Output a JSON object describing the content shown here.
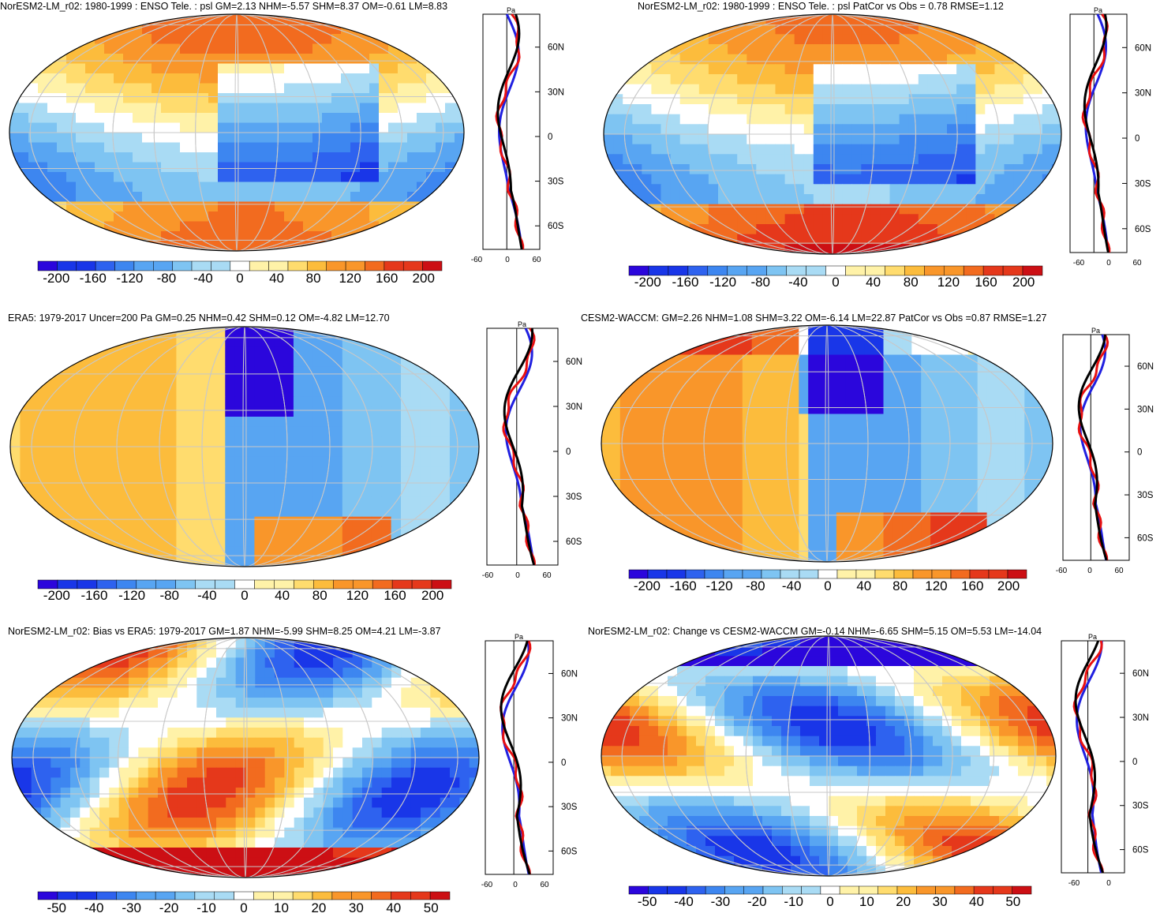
{
  "chart_data": [
    {
      "type": "heatmap",
      "title": "NorESM2-LM_r02: 1980-1999 : ENSO Tele. : psl GM=2.13 NHM=-5.57 SHM=8.37 OM=-0.61 LM=8.83",
      "field": "sea level pressure (psl) ENSO teleconnection regression",
      "colorbar": {
        "ticks": [
          "-200",
          "-160",
          "-120",
          "-80",
          "-40",
          "0",
          "40",
          "80",
          "120",
          "160",
          "200"
        ],
        "range": [
          -200,
          200
        ]
      },
      "profile": {
        "unit": "Pa",
        "x_ticks": [
          "-60",
          "0",
          "60"
        ],
        "y_ticks": [
          "60N",
          "30N",
          "0",
          "30S",
          "60S"
        ],
        "series": [
          "blue",
          "red",
          "black"
        ]
      }
    },
    {
      "type": "heatmap",
      "title": "NorESM2-LM_r02: 1980-1999 : ENSO Tele. : psl PatCor vs Obs = 0.78 RMSE=1.12",
      "field": "sea level pressure (psl) ENSO teleconnection regression",
      "colorbar": {
        "ticks": [
          "-200",
          "-160",
          "-120",
          "-80",
          "-40",
          "0",
          "40",
          "80",
          "120",
          "160",
          "200"
        ],
        "range": [
          -200,
          200
        ]
      },
      "profile": {
        "unit": "Pa",
        "x_ticks": [
          "-60",
          "0",
          "60"
        ],
        "y_ticks": [
          "60N",
          "30N",
          "0",
          "30S",
          "60S"
        ],
        "series": [
          "blue",
          "red",
          "black"
        ]
      }
    },
    {
      "type": "heatmap",
      "title": "ERA5: 1979-2017 Uncer=200 Pa GM=0.25 NHM=0.42 SHM=0.12 OM=-4.82 LM=12.70",
      "field": "sea level pressure (psl) ENSO teleconnection regression",
      "colorbar": {
        "ticks": [
          "-200",
          "-160",
          "-120",
          "-80",
          "-40",
          "0",
          "40",
          "80",
          "120",
          "160",
          "200"
        ],
        "range": [
          -200,
          200
        ]
      },
      "profile": {
        "unit": "Pa",
        "x_ticks": [
          "-60",
          "0",
          "60"
        ],
        "y_ticks": [
          "60N",
          "30N",
          "0",
          "30S",
          "60S"
        ],
        "series": [
          "blue",
          "red",
          "black"
        ]
      }
    },
    {
      "type": "heatmap",
      "title": "CESM2-WACCM: GM=2.26 NHM=1.08 SHM=3.22 OM=-6.14 LM=22.87 PatCor vs Obs =0.87 RMSE=1.27",
      "field": "sea level pressure (psl) ENSO teleconnection regression",
      "colorbar": {
        "ticks": [
          "-200",
          "-160",
          "-120",
          "-80",
          "-40",
          "0",
          "40",
          "80",
          "120",
          "160",
          "200"
        ],
        "range": [
          -200,
          200
        ]
      },
      "profile": {
        "unit": "Pa",
        "x_ticks": [
          "-60",
          "0",
          "60"
        ],
        "y_ticks": [
          "60N",
          "30N",
          "0",
          "30S",
          "60S"
        ],
        "series": [
          "blue",
          "red",
          "black"
        ]
      }
    },
    {
      "type": "heatmap",
      "title": "NorESM2-LM_r02: Bias vs ERA5: 1979-2017 GM=1.87 NHM=-5.99 SHM=8.25 OM=4.21 LM=-3.87",
      "field": "sea level pressure bias",
      "colorbar": {
        "ticks": [
          "-50",
          "-40",
          "-30",
          "-20",
          "-10",
          "0",
          "10",
          "20",
          "30",
          "40",
          "50"
        ],
        "range": [
          -50,
          50
        ]
      },
      "profile": {
        "unit": "Pa",
        "x_ticks": [
          "-60",
          "0",
          "60"
        ],
        "y_ticks": [
          "60N",
          "30N",
          "0",
          "30S",
          "60S"
        ],
        "series": [
          "blue",
          "red",
          "black"
        ]
      }
    },
    {
      "type": "heatmap",
      "title": "NorESM2-LM_r02: Change vs CESM2-WACCM GM=-0.14 NHM=-6.65 SHM=5.15 OM=5.53 LM=-14.04",
      "field": "sea level pressure change",
      "colorbar": {
        "ticks": [
          "-50",
          "-40",
          "-30",
          "-20",
          "-10",
          "0",
          "10",
          "20",
          "30",
          "40",
          "50"
        ],
        "range": [
          -50,
          50
        ]
      },
      "profile": {
        "unit": "Pa",
        "x_ticks": [
          "-60",
          "0"
        ],
        "y_ticks": [
          "60N",
          "30N",
          "0",
          "30S",
          "60S"
        ],
        "series": [
          "blue",
          "red",
          "black"
        ]
      }
    }
  ]
}
